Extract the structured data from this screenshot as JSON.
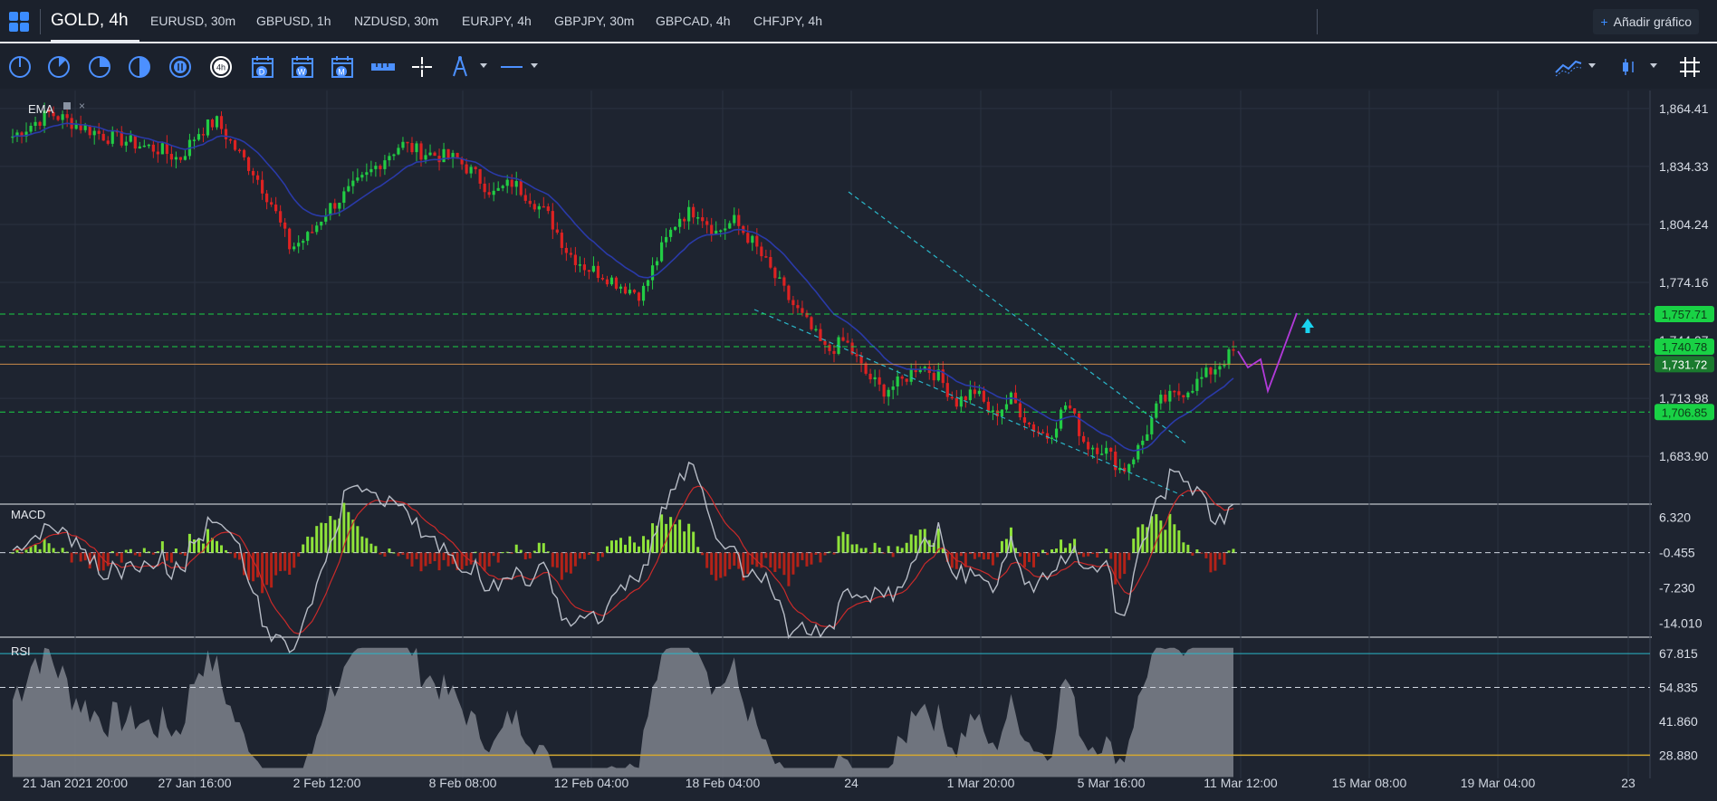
{
  "tabs": {
    "active": "GOLD, 4h",
    "items": [
      "EURUSD, 30m",
      "GBPUSD, 1h",
      "NZDUSD, 30m",
      "EURJPY, 4h",
      "GBPJPY, 30m",
      "GBPCAD, 4h",
      "CHFJPY, 4h"
    ],
    "add_chart": "Añadir gráfico"
  },
  "toolbar": {
    "timeframe_badge": "4h",
    "calendar_d": "D",
    "calendar_w": "W",
    "calendar_m": "M",
    "icons": [
      "pie-quarter-icon",
      "pie-eighth-icon",
      "pie-threequarter-icon",
      "pie-half-icon",
      "pie-hourly-icon",
      "timeframe-4h-icon",
      "calendar-day-icon",
      "calendar-week-icon",
      "calendar-month-icon",
      "ruler-icon",
      "crosshair-icon",
      "drawing-pen-icon",
      "line-tool-icon",
      "indicator-icon",
      "candle-type-icon",
      "grid-toggle-icon"
    ]
  },
  "colors": {
    "background": "#1e2430",
    "bull": "#22cc44",
    "bear": "#dd2222",
    "ema": "#2a3aa8",
    "level_green": "#19d145",
    "level_orange": "#c98a4a",
    "trend_cyan": "#2ab6c8",
    "projection": "#b23ad9",
    "arrow": "#19d3f0"
  },
  "chart_data": {
    "type": "candlestick",
    "symbol": "GOLD, 4h",
    "indicator_label": "EMA",
    "price_ticks": [
      "1,864.41",
      "1,834.33",
      "1,804.24",
      "1,774.16",
      "1,744.07",
      "1,713.98",
      "1,683.90"
    ],
    "price_range": [
      1660,
      1870
    ],
    "levels": [
      {
        "price": 1757.71,
        "label": "1,757.71",
        "style": "dashed",
        "color": "#19d145"
      },
      {
        "price": 1740.78,
        "label": "1,740.78",
        "style": "dashed",
        "color": "#19d145"
      },
      {
        "price": 1731.72,
        "label": "1,731.72",
        "style": "solid",
        "color": "#c98a4a",
        "current": true
      },
      {
        "price": 1706.85,
        "label": "1,706.85",
        "style": "dashed",
        "color": "#19d145"
      }
    ],
    "x_labels": [
      "21 Jan 2021 20:00",
      "27 Jan 16:00",
      "2 Feb 12:00",
      "8 Feb 08:00",
      "12 Feb 04:00",
      "18 Feb 04:00",
      "24",
      "1 Mar 20:00",
      "5 Mar 16:00",
      "11 Mar 12:00",
      "15 Mar 08:00",
      "19 Mar 04:00",
      "23"
    ],
    "close_path": [
      1850,
      1856,
      1862,
      1858,
      1854,
      1850,
      1848,
      1845,
      1843,
      1838,
      1852,
      1858,
      1844,
      1832,
      1815,
      1792,
      1798,
      1812,
      1820,
      1828,
      1838,
      1846,
      1842,
      1840,
      1838,
      1830,
      1820,
      1826,
      1818,
      1808,
      1790,
      1782,
      1778,
      1772,
      1768,
      1790,
      1808,
      1812,
      1800,
      1806,
      1795,
      1780,
      1765,
      1752,
      1738,
      1744,
      1728,
      1718,
      1722,
      1732,
      1726,
      1712,
      1718,
      1705,
      1714,
      1700,
      1694,
      1712,
      1690,
      1688,
      1676,
      1690,
      1712,
      1716,
      1722,
      1730,
      1738
    ],
    "macd": {
      "label": "MACD",
      "ticks": [
        "6.320",
        "-0.455",
        "-7.230",
        "-14.010"
      ],
      "range": [
        -16,
        8
      ],
      "zero": -0.455
    },
    "rsi": {
      "label": "RSI",
      "ticks": [
        "67.815",
        "54.835",
        "41.860",
        "28.880"
      ],
      "range": [
        20,
        72
      ],
      "upper": 54.835,
      "lower": 28.88
    }
  }
}
